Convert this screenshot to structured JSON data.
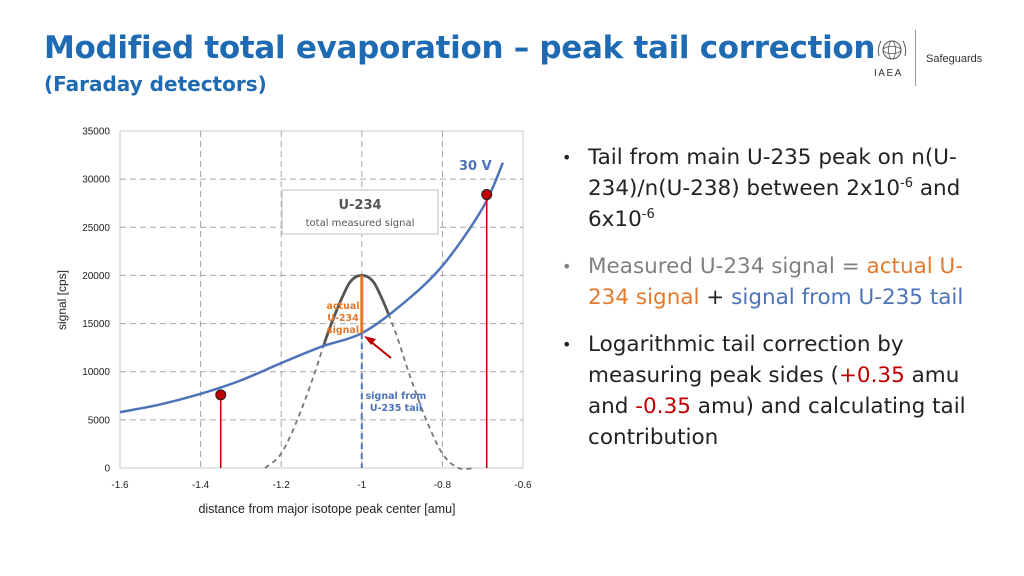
{
  "header": {
    "title": "Modified total evaporation – peak tail correction",
    "subtitle": "(Faraday detectors)",
    "logo_text": "IAEA",
    "section_label": "Safeguards"
  },
  "chart_data": {
    "type": "line",
    "title": "",
    "xlabel": "distance from major isotope peak center [amu]",
    "ylabel": "signal [cps]",
    "xlim": [
      -1.6,
      -0.6
    ],
    "ylim": [
      0,
      35000
    ],
    "x_ticks": [
      "-1.6",
      "-1.4",
      "-1.2",
      "-1",
      "-0.8",
      "-0.6"
    ],
    "y_ticks": [
      "0",
      "5000",
      "10000",
      "15000",
      "20000",
      "25000",
      "30000",
      "35000"
    ],
    "grid": true,
    "series": [
      {
        "kind": "tail-exponential",
        "color": "#4d73b8",
        "x": [
          -1.6,
          -1.5,
          -1.4,
          -1.3,
          -1.2,
          -1.1,
          -1.0,
          -0.9,
          -0.8,
          -0.7,
          -0.65
        ],
        "y": [
          5800,
          6600,
          7700,
          9100,
          10900,
          12600,
          14000,
          17000,
          21000,
          27000,
          31700
        ]
      },
      {
        "kind": "u234-peak",
        "color": "#555555",
        "x": [
          -1.24,
          -1.2,
          -1.16,
          -1.12,
          -1.08,
          -1.04,
          -1.02,
          -1.0,
          -0.98,
          -0.96,
          -0.92,
          -0.88,
          -0.84,
          -0.8,
          -0.76,
          -0.72
        ],
        "y": [
          0,
          1500,
          5000,
          9500,
          14500,
          18500,
          19700,
          20000,
          19700,
          18500,
          14500,
          9500,
          5000,
          1500,
          0,
          0
        ]
      }
    ],
    "markers": [
      {
        "x": -1.35,
        "y": 7600,
        "color": "#c00000"
      },
      {
        "x": -0.69,
        "y": 28400,
        "color": "#c00000"
      }
    ],
    "annotations": {
      "voltage_label": "30 V",
      "box_title": "U-234",
      "box_sub": "total measured signal",
      "actual_label_1": "actual",
      "actual_label_2": "U-234",
      "actual_label_3": "signal",
      "tail_label_1": "signal from",
      "tail_label_2": "U-235 tail"
    },
    "colors": {
      "tail": "#4d73b8",
      "peak": "#555555",
      "actual": "#e4792b",
      "marker": "#c00000"
    }
  },
  "bullets": {
    "b1_text": "Tail from main U-235 peak on n(U-234)/n(U-238) between 2x10",
    "b1_sup1": "-6",
    "b1_mid": " and 6x10",
    "b1_sup2": "-6",
    "b2_part1": "Measured U-234 signal",
    "b2_eq": " = ",
    "b2_part2": "actual U-234 signal",
    "b2_plus": " + ",
    "b2_part3": "signal from U-235 tail",
    "b3_part1": "Logarithmic tail correction by measuring peak sides (",
    "b3_val1": "+0.35",
    "b3_part2": " amu and ",
    "b3_val2": "-0.35",
    "b3_part3": " amu) and calculating tail contribution"
  }
}
